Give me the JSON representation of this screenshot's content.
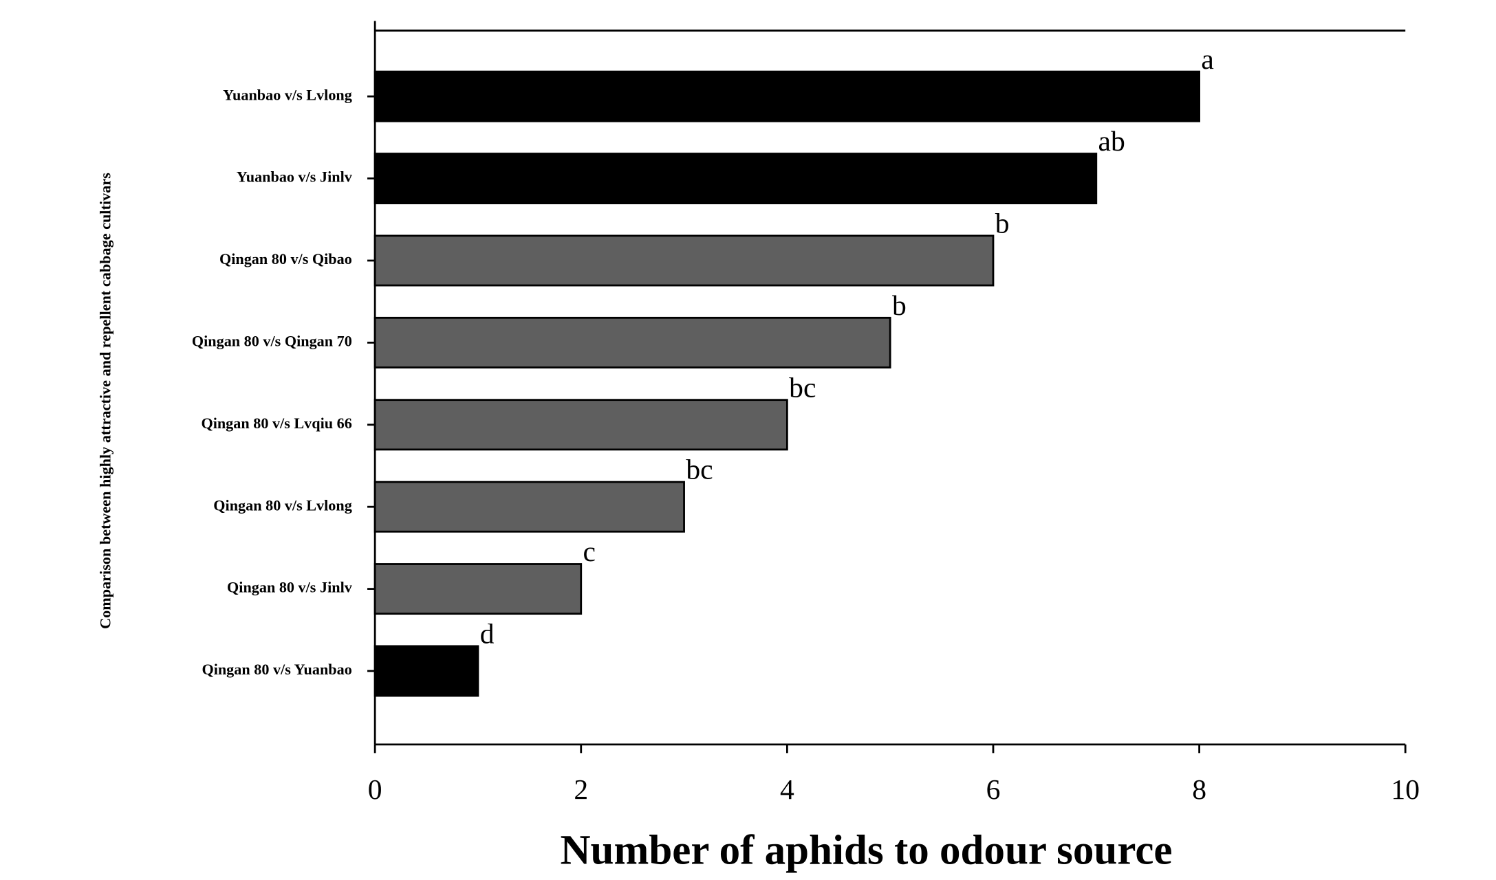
{
  "chart_data": {
    "type": "bar",
    "orientation": "horizontal",
    "x_label": "Number of aphids to odour source",
    "y_label": "Comparison between highly attractive and repellent cabbage cultivars",
    "categories": [
      "Yuanbao v/s Lvlong",
      "Yuanbao v/s Jinlv",
      "Qingan 80 v/s Qibao",
      "Qingan 80 v/s Qingan 70",
      "Qingan 80 v/s Lvqiu 66",
      "Qingan 80 v/s Lvlong",
      "Qingan 80 v/s Jinlv",
      "Qingan 80 v/s Yuanbao"
    ],
    "values": [
      8,
      7,
      6,
      5,
      4,
      3,
      2,
      1
    ],
    "annotations": [
      "a",
      "ab",
      "b",
      "b",
      "bc",
      "bc",
      "c",
      "d"
    ],
    "colors": [
      "#000000",
      "#000000",
      "#5f5f5f",
      "#5f5f5f",
      "#5f5f5f",
      "#5f5f5f",
      "#5f5f5f",
      "#000000"
    ],
    "xlim": [
      0,
      10
    ],
    "xticks": [
      0,
      2,
      4,
      6,
      8,
      10
    ]
  }
}
